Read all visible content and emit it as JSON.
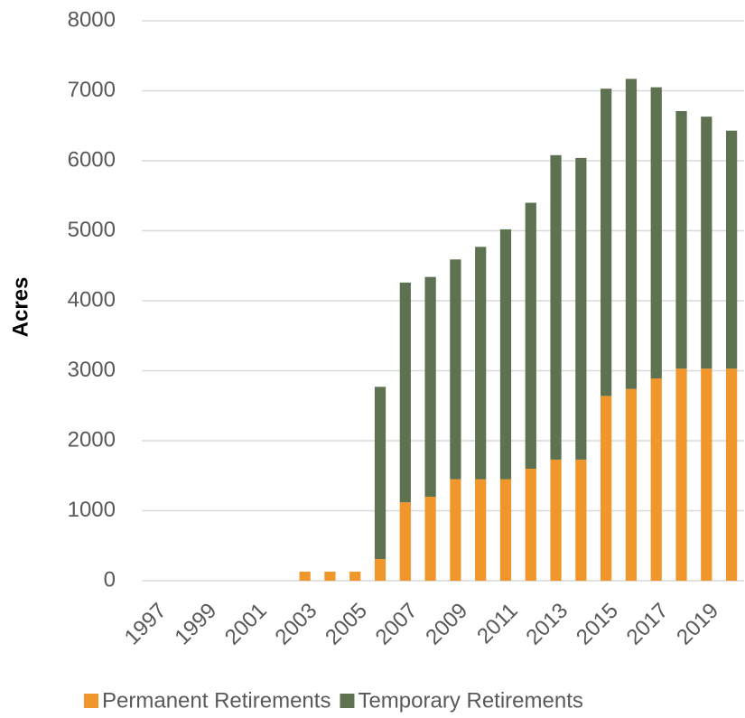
{
  "chart_data": {
    "type": "stacked_bar",
    "y_label": "Acres",
    "categories": [
      "1997",
      null,
      "1999",
      null,
      "2001",
      null,
      "2003",
      null,
      "2005",
      null,
      "2007",
      null,
      "2009",
      null,
      "2011",
      null,
      "2013",
      null,
      "2015",
      null,
      "2017",
      null,
      "2019",
      null
    ],
    "series": [
      {
        "name": "Permanent Retirements",
        "color": "#f0962a",
        "values": [
          0,
          0,
          0,
          0,
          0,
          0,
          130,
          130,
          130,
          310,
          1120,
          1200,
          1450,
          1450,
          1450,
          1600,
          1730,
          1730,
          2640,
          2740,
          2890,
          3030,
          3030,
          3030
        ]
      },
      {
        "name": "Temporary Retirements",
        "color": "#5e7150",
        "values": [
          0,
          0,
          0,
          0,
          0,
          0,
          0,
          0,
          0,
          2460,
          3140,
          3140,
          3140,
          3320,
          3570,
          3800,
          4350,
          4310,
          4390,
          4430,
          4160,
          3680,
          3600,
          3400
        ]
      }
    ],
    "ylim": [
      0,
      8000
    ],
    "yticks": [
      0,
      1000,
      2000,
      3000,
      4000,
      5000,
      6000,
      7000,
      8000
    ],
    "grid": true,
    "legend": "bottom"
  }
}
